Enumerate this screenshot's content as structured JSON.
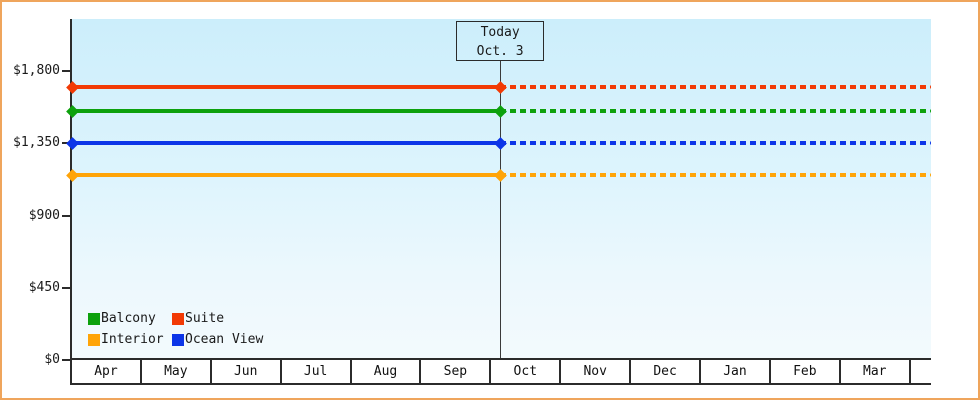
{
  "frame": {
    "border_color": "#efa55c",
    "background_color": "#ffffff",
    "axis_color": "#2b2b2b"
  },
  "chart_data": {
    "type": "line",
    "title": "",
    "x_categories": [
      "Apr",
      "May",
      "Jun",
      "Jul",
      "Aug",
      "Sep",
      "Oct",
      "Nov",
      "Dec",
      "Jan",
      "Feb",
      "Mar"
    ],
    "y_axis": {
      "tick_labels": [
        "$0",
        "$450",
        "$900",
        "$1,350",
        "$1,800"
      ],
      "tick_values": [
        0,
        450,
        900,
        1350,
        1800
      ]
    },
    "ylim": [
      0,
      2125
    ],
    "grid": false,
    "legend_position": "bottom-left-inside",
    "series": [
      {
        "name": "Balcony",
        "color": "#0da10d",
        "value": 1550
      },
      {
        "name": "Suite",
        "color": "#f23a05",
        "value": 1700
      },
      {
        "name": "Interior",
        "color": "#ffa408",
        "value": 1150
      },
      {
        "name": "Ocean View",
        "color": "#0c35e8",
        "value": 1350
      }
    ],
    "line_style": {
      "before_today": "solid",
      "after_today": "dotted"
    },
    "annotation": {
      "line1": "Today",
      "line2": "Oct. 3",
      "month": "Oct",
      "day": 3
    }
  }
}
